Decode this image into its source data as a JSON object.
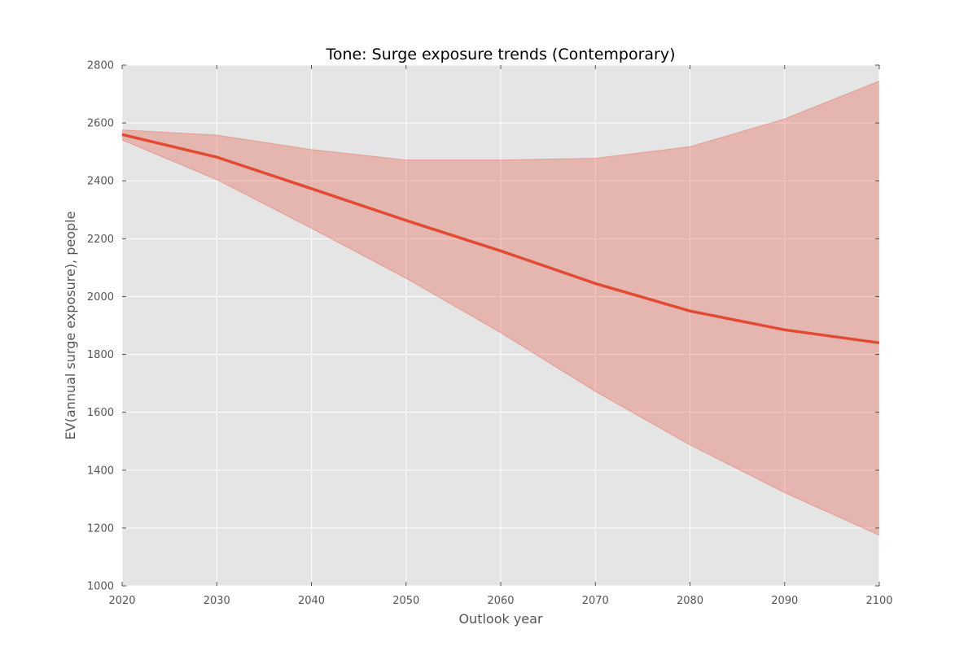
{
  "chart_data": {
    "type": "line",
    "title": "Tone: Surge exposure trends (Contemporary)",
    "xlabel": "Outlook year",
    "ylabel": "EV(annual surge exposure), people",
    "xlim": [
      2020,
      2100
    ],
    "ylim": [
      1000,
      2800
    ],
    "xticks": [
      2020,
      2030,
      2040,
      2050,
      2060,
      2070,
      2080,
      2090,
      2100
    ],
    "yticks": [
      1000,
      1200,
      1400,
      1600,
      1800,
      2000,
      2200,
      2400,
      2600,
      2800
    ],
    "grid": true,
    "x": [
      2020,
      2030,
      2040,
      2050,
      2060,
      2070,
      2080,
      2090,
      2100
    ],
    "series": [
      {
        "values": [
          2560,
          2482,
          2373,
          2263,
          2158,
          2045,
          1950,
          1885,
          1840
        ],
        "color": "#e24a33",
        "band": {
          "upper": [
            2576,
            2558,
            2508,
            2472,
            2472,
            2478,
            2518,
            2614,
            2745
          ],
          "lower": [
            2541,
            2404,
            2236,
            2063,
            1875,
            1672,
            1487,
            1322,
            1175
          ],
          "color": "#e24a33"
        }
      }
    ],
    "colors": {
      "plot_background": "#e5e5e5",
      "grid": "#ffffff"
    }
  }
}
